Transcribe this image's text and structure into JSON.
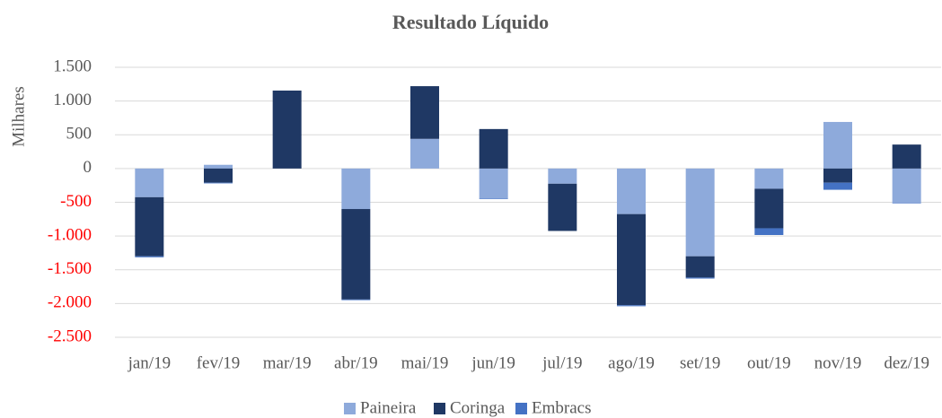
{
  "chart_data": {
    "type": "stacked_bar",
    "title": "Resultado Líquido",
    "ylabel": "Milhares",
    "categories": [
      "jan/19",
      "fev/19",
      "mar/19",
      "abr/19",
      "mai/19",
      "jun/19",
      "jul/19",
      "ago/19",
      "set/19",
      "out/19",
      "nov/19",
      "dez/19"
    ],
    "series": [
      {
        "name": "Paineira",
        "color": "#8eaadb",
        "values": [
          -425,
          55,
          0,
          -600,
          440,
          -440,
          -225,
          -675,
          -1300,
          -300,
          690,
          -505
        ]
      },
      {
        "name": "Coringa",
        "color": "#1f3864",
        "values": [
          -875,
          -210,
          1155,
          -1340,
          780,
          585,
          -700,
          -1350,
          -315,
          -585,
          -210,
          355
        ]
      },
      {
        "name": "Embracs",
        "color": "#4472c4",
        "values": [
          -15,
          -10,
          0,
          -10,
          0,
          -10,
          0,
          -15,
          -15,
          -100,
          -105,
          -10
        ]
      }
    ],
    "ylim": [
      -2500,
      1500
    ],
    "yticks": [
      {
        "value": 1500,
        "label": "1.500"
      },
      {
        "value": 1000,
        "label": "1.000"
      },
      500,
      0,
      -500,
      {
        "value": -1000,
        "label": "-1.000"
      },
      {
        "value": -1500,
        "label": "-1.500"
      },
      {
        "value": -2000,
        "label": "-2.000"
      },
      {
        "value": -2500,
        "label": "-2.500"
      }
    ],
    "negative_tick_color": "#ff0000",
    "grid": true,
    "legend": "bottom"
  }
}
